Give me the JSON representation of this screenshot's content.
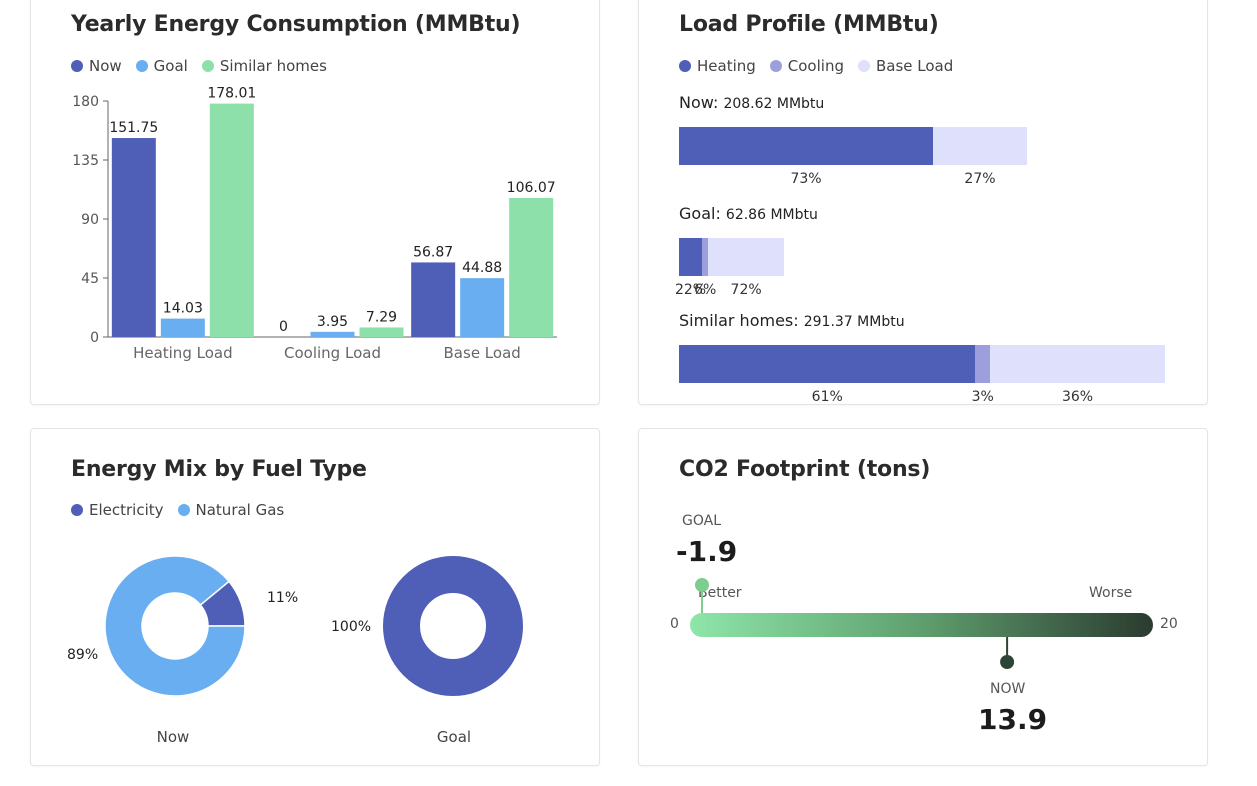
{
  "colors": {
    "now": "#4f5fb8",
    "goal": "#68aef0",
    "similar": "#8ee0ab",
    "heating": "#4f5fb8",
    "cooling": "#9c9fdc",
    "base": "#dfe0fb",
    "electricity": "#4f5fb8",
    "natural_gas": "#68aef0"
  },
  "yearly": {
    "title": "Yearly Energy Consumption (MMBtu)",
    "legend": [
      "Now",
      "Goal",
      "Similar homes"
    ]
  },
  "load_profile": {
    "title": "Load Profile (MMBtu)",
    "legend": [
      "Heating",
      "Cooling",
      "Base Load"
    ],
    "rows": [
      {
        "label": "Now:",
        "value": "208.62 MMbtu",
        "total": 208.62,
        "shares": [
          73,
          0,
          27
        ],
        "pcts": [
          "73%",
          "",
          "27%"
        ]
      },
      {
        "label": "Goal:",
        "value": "62.86 MMbtu",
        "total": 62.86,
        "shares": [
          22,
          6,
          72
        ],
        "pcts": [
          "22%",
          "6%",
          "72%"
        ]
      },
      {
        "label": "Similar homes:",
        "value": "291.37 MMbtu",
        "total": 291.37,
        "shares": [
          61,
          3,
          36
        ],
        "pcts": [
          "61%",
          "3%",
          "36%"
        ]
      }
    ]
  },
  "mix": {
    "title": "Energy Mix by Fuel Type",
    "legend": [
      "Electricity",
      "Natural Gas"
    ],
    "donuts": [
      {
        "name": "Now",
        "electricity": 11,
        "natural_gas": 89,
        "label_elec": "11%",
        "label_gas": "89%"
      },
      {
        "name": "Goal",
        "electricity": 100,
        "natural_gas": 0,
        "label_elec": "100%",
        "label_gas": ""
      }
    ]
  },
  "co2": {
    "title": "CO2 Footprint (tons)",
    "goal_label": "GOAL",
    "goal_value": "-1.9",
    "now_label": "NOW",
    "now_value": "13.9",
    "better": "Better",
    "worse": "Worse",
    "min_label": "0",
    "max_label": "20",
    "min": 0,
    "max": 20,
    "goal": -1.9,
    "now": 13.9
  },
  "chart_data": [
    {
      "type": "bar",
      "title": "Yearly Energy Consumption (MMBtu)",
      "categories": [
        "Heating Load",
        "Cooling Load",
        "Base Load"
      ],
      "series": [
        {
          "name": "Now",
          "values": [
            151.75,
            0,
            56.87
          ],
          "labels": [
            "151.75",
            "0",
            "56.87"
          ]
        },
        {
          "name": "Goal",
          "values": [
            14.03,
            3.95,
            44.88
          ],
          "labels": [
            "14.03",
            "3.95",
            "44.88"
          ]
        },
        {
          "name": "Similar homes",
          "values": [
            178.01,
            7.29,
            106.07
          ],
          "labels": [
            "178.01",
            "7.29",
            "106.07"
          ]
        }
      ],
      "ylim": [
        0,
        180
      ],
      "yticks": [
        "0",
        "45",
        "90",
        "135",
        "180"
      ],
      "legend": "top-left",
      "grid": false
    },
    {
      "type": "pie",
      "title": "Energy Mix by Fuel Type",
      "series": [
        {
          "name": "Now",
          "slices": [
            {
              "label": "Electricity",
              "value": 11
            },
            {
              "label": "Natural Gas",
              "value": 89
            }
          ]
        },
        {
          "name": "Goal",
          "slices": [
            {
              "label": "Electricity",
              "value": 100
            },
            {
              "label": "Natural Gas",
              "value": 0
            }
          ]
        }
      ]
    }
  ]
}
